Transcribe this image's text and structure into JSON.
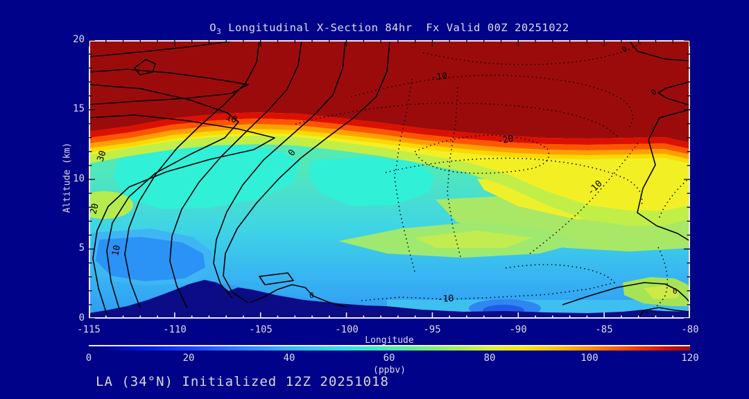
{
  "title": {
    "prefix": "O",
    "subscript": "3",
    "rest": " Longitudinal X-Section 84hr  Fx Valid 00Z 20251022"
  },
  "footer": "LA (34°N) Initialized 12Z 20251018",
  "axes": {
    "y_label": "Altitude (km)",
    "x_label": "Longitude",
    "y_ticks": [
      "20",
      "15",
      "10",
      "5",
      "0"
    ],
    "x_ticks": [
      "-115",
      "-110",
      "-105",
      "-100",
      "-95",
      "-90",
      "-85",
      "-80"
    ]
  },
  "colorbar": {
    "ticks": [
      "0",
      "20",
      "40",
      "60",
      "80",
      "100",
      "120"
    ],
    "units": "(ppbv)",
    "scale": [
      0,
      120
    ],
    "gradient_stops": [
      {
        "value": 0,
        "color": "#00006e"
      },
      {
        "value": 20,
        "color": "#2444fa"
      },
      {
        "value": 40,
        "color": "#38b4f0"
      },
      {
        "value": 50,
        "color": "#36dce4"
      },
      {
        "value": 60,
        "color": "#54eca0"
      },
      {
        "value": 70,
        "color": "#7bee78"
      },
      {
        "value": 80,
        "color": "#f8e800"
      },
      {
        "value": 95,
        "color": "#ff9000"
      },
      {
        "value": 110,
        "color": "#d01000"
      },
      {
        "value": 120,
        "color": "#9c0b0b"
      }
    ]
  },
  "contour_labels": [
    {
      "text": "30"
    },
    {
      "text": "20"
    },
    {
      "text": "10"
    },
    {
      "text": "10"
    },
    {
      "text": "0"
    },
    {
      "text": "0"
    },
    {
      "text": "-10"
    },
    {
      "text": "-20"
    },
    {
      "text": "-10"
    },
    {
      "text": "-10"
    },
    {
      "text": "0"
    },
    {
      "text": "0"
    },
    {
      "text": "0"
    }
  ],
  "colors": {
    "background": "#000289",
    "text": "#dcdce6",
    "frame": "#ececec",
    "stratosphere_fill": "#9c0b0b",
    "terrain": "#0c0c86",
    "contour_line": "#000000"
  },
  "chart_data": {
    "type": "heatmap",
    "title": "O3 Longitudinal X-Section 84hr  Fx Valid 00Z 20251022",
    "xlabel": "Longitude",
    "ylabel": "Altitude (km)",
    "xlim": [
      -115,
      -80
    ],
    "ylim": [
      0,
      20
    ],
    "fill_units": "ppbv",
    "fill_scale": [
      0,
      120
    ],
    "x": [
      -115,
      -110,
      -105,
      -100,
      -95,
      -90,
      -85,
      -80
    ],
    "altitudes_km": [
      18,
      16,
      14,
      12,
      10,
      8,
      6,
      4,
      2
    ],
    "ozone_ppbv_grid": [
      [
        140,
        140,
        140,
        140,
        140,
        140,
        140,
        140
      ],
      [
        140,
        140,
        140,
        140,
        140,
        140,
        140,
        140
      ],
      [
        110,
        135,
        140,
        140,
        140,
        140,
        140,
        130
      ],
      [
        70,
        48,
        45,
        50,
        60,
        85,
        88,
        80
      ],
      [
        55,
        45,
        48,
        45,
        55,
        65,
        75,
        60
      ],
      [
        75,
        55,
        55,
        50,
        58,
        62,
        60,
        55
      ],
      [
        50,
        48,
        50,
        48,
        50,
        52,
        50,
        48
      ],
      [
        38,
        36,
        45,
        45,
        45,
        44,
        45,
        50
      ],
      [
        35,
        null,
        40,
        38,
        35,
        28,
        38,
        55
      ]
    ],
    "grid_note": "values >120 ppbv rendered dark red (stratospheric ozone above ~12-14 km); null = below terrain",
    "overlay_contours": {
      "solid_labels": [
        30,
        20,
        10,
        0
      ],
      "dotted_labels": [
        -10,
        -20
      ],
      "note": "solid lines = zero/positive values (west side), dotted lines = negative values (center/east)"
    },
    "terrain": {
      "peak_altitude_km": 2.9,
      "peak_longitude": -108.3,
      "note": "dark navy silhouette masks below-ground area along bottom of section"
    },
    "legend_position": "horizontal colorbar below x-axis",
    "grid": false
  }
}
